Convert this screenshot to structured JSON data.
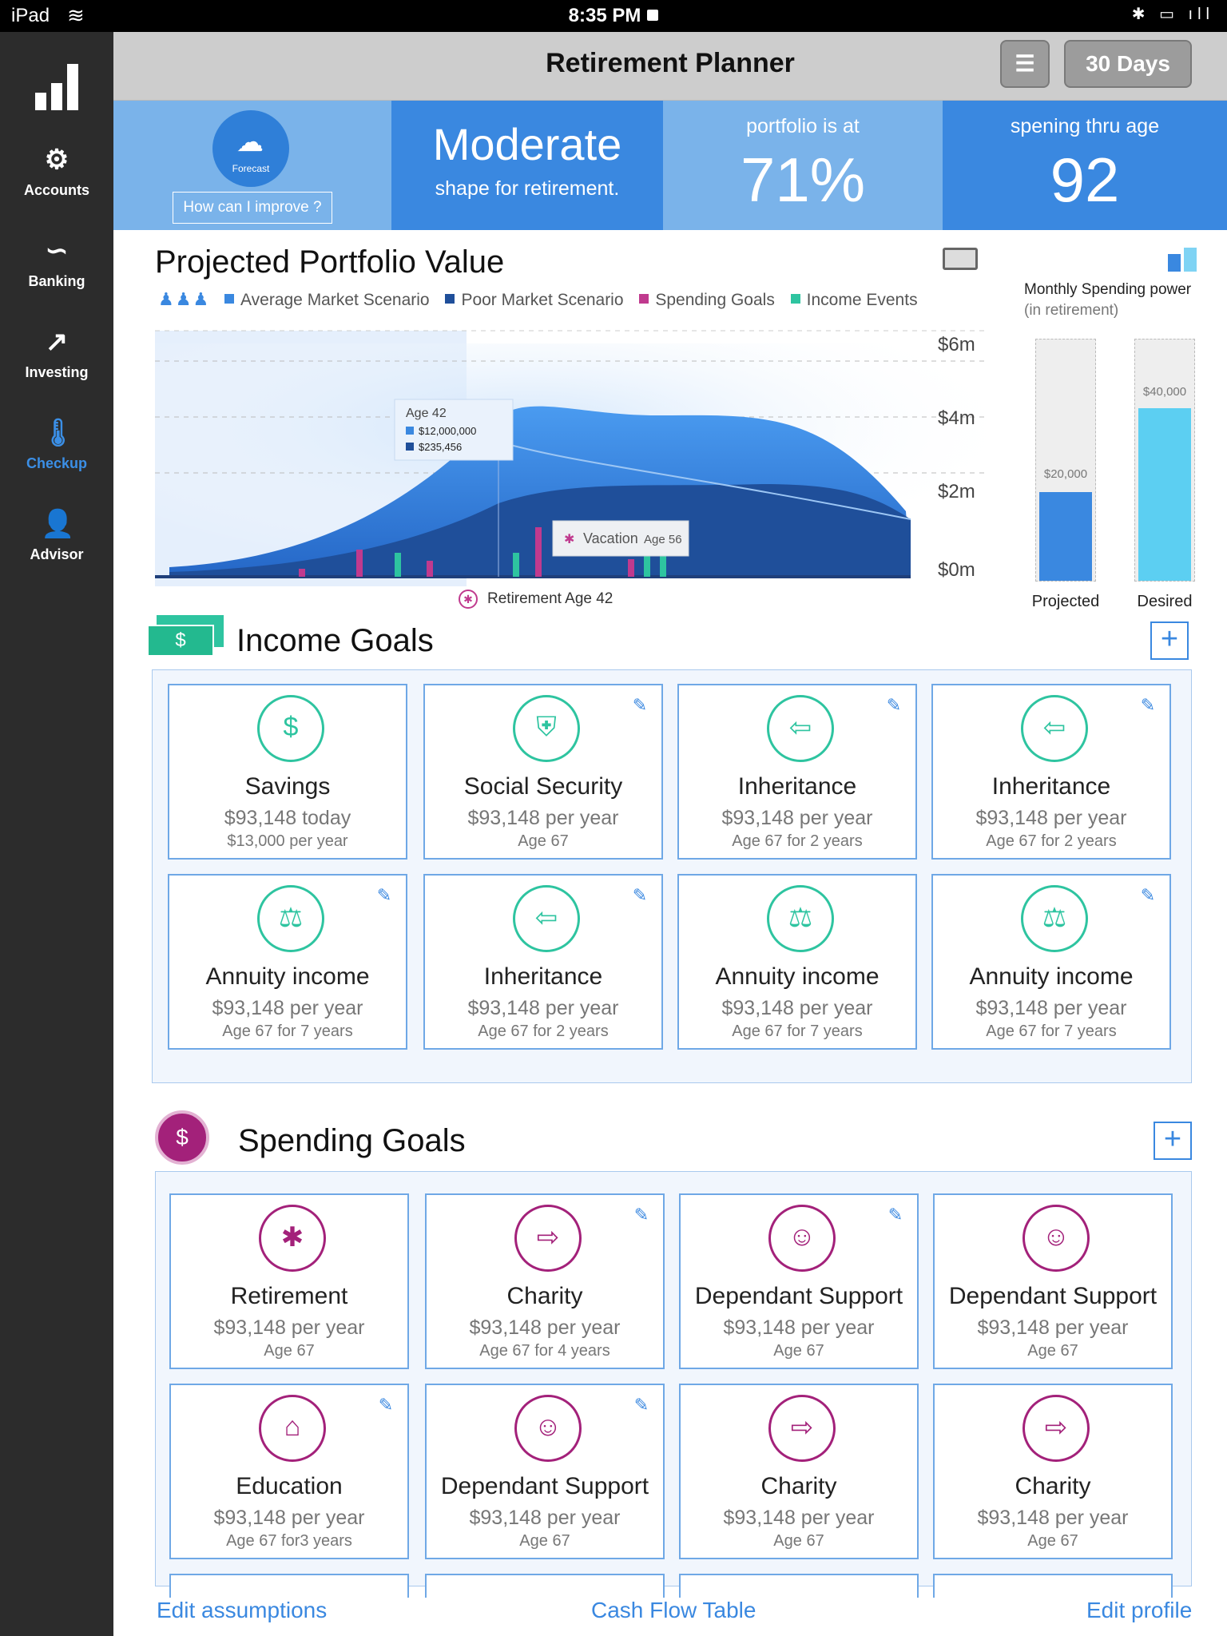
{
  "status_bar": {
    "device": "iPad",
    "time": "8:35 PM"
  },
  "colors": {
    "sidebar": "#2c2c2c",
    "accent_blue": "#3a88e0",
    "light_blue": "#7ab3ea",
    "income_green": "#2ec4a0",
    "spending_magenta": "#a3217a"
  },
  "sidebar": {
    "items": [
      {
        "label": "Accounts",
        "icon": "dollar-gear-icon"
      },
      {
        "label": "Banking",
        "icon": "link-icon"
      },
      {
        "label": "Investing",
        "icon": "trend-up-icon"
      },
      {
        "label": "Checkup",
        "icon": "thermometer-icon",
        "active": true
      },
      {
        "label": "Advisor",
        "icon": "person-icon"
      }
    ]
  },
  "header": {
    "title": "Retirement Planner",
    "range_button": "30 Days"
  },
  "summary": {
    "forecast_label": "Forecast",
    "improve_button": "How can I improve ?",
    "shape_word": "Moderate",
    "shape_sub": "shape for retirement.",
    "portfolio_label": "portfolio is at",
    "portfolio_value": "71%",
    "spending_label": "spening thru age",
    "spending_age": "92"
  },
  "chart": {
    "title": "Projected Portfolio Value",
    "legend": [
      {
        "label": "Average Market Scenario",
        "color": "#3a88e0"
      },
      {
        "label": "Poor Market Scenario",
        "color": "#1f4f9a"
      },
      {
        "label": "Spending Goals",
        "color": "#c03a8e"
      },
      {
        "label": "Income Events",
        "color": "#2ec4a0"
      }
    ],
    "y_ticks": [
      "$6m",
      "$4m",
      "$2m",
      "$0m"
    ],
    "tooltip_age": "Age 42",
    "tooltip_avg": "$12,000,000",
    "tooltip_poor": "$235,456",
    "event_label": "Vacation",
    "event_age": "Age 56",
    "retirement_marker": "Retirement Age 42"
  },
  "monthly_spending": {
    "title": "Monthly Spending power",
    "subtitle": "(in retirement)",
    "projected": {
      "label": "Projected",
      "value_label": "$20,000",
      "fraction": 0.37
    },
    "desired": {
      "label": "Desired",
      "value_label": "$40,000",
      "fraction": 0.72
    }
  },
  "income": {
    "title": "Income Goals",
    "cards": [
      {
        "title": "Savings",
        "line1": "$93,148 today",
        "line2": "$13,000 per year",
        "icon": "savings-icon"
      },
      {
        "title": "Social Security",
        "line1": "$93,148 per year",
        "line2": "Age  67",
        "icon": "shield-icon"
      },
      {
        "title": "Inheritance",
        "line1": "$93,148 per year",
        "line2": "Age  67       for 2 years",
        "icon": "gift-icon"
      },
      {
        "title": "Inheritance",
        "line1": "$93,148 per year",
        "line2": "Age  67       for 2 years",
        "icon": "gift-icon"
      },
      {
        "title": "Annuity income",
        "line1": "$93,148 per year",
        "line2": "Age  67   for 7 years",
        "icon": "scales-icon"
      },
      {
        "title": "Inheritance",
        "line1": "$93,148 per year",
        "line2": "Age  67   for 2 years",
        "icon": "gift-icon"
      },
      {
        "title": "Annuity income",
        "line1": "$93,148 per year",
        "line2": "Age  67       for 7 years",
        "icon": "scales-icon"
      },
      {
        "title": "Annuity income",
        "line1": "$93,148 per year",
        "line2": "Age  67       for 7 years",
        "icon": "scales-icon"
      }
    ]
  },
  "spending": {
    "title": "Spending Goals",
    "cards": [
      {
        "title": "Retirement",
        "line1": "$93,148 per year",
        "line2": "Age  67",
        "icon": "palm-tree-icon"
      },
      {
        "title": "Charity",
        "line1": "$93,148 per year",
        "line2": "Age  67       for 4 years",
        "icon": "gift-out-icon"
      },
      {
        "title": "Dependant Support",
        "line1": "$93,148 per year",
        "line2": "Age  67",
        "icon": "family-icon"
      },
      {
        "title": "Dependant Support",
        "line1": "$93,148 per year",
        "line2": "Age  67",
        "icon": "family-icon"
      },
      {
        "title": "Education",
        "line1": "$93,148 per year",
        "line2": "Age  67  for3 years",
        "icon": "graduation-cap-icon"
      },
      {
        "title": "Dependant Support",
        "line1": "$93,148 per year",
        "line2": "Age  67",
        "icon": "family-icon"
      },
      {
        "title": "Charity",
        "line1": "$93,148 per year",
        "line2": "Age  67",
        "icon": "gift-out-icon"
      },
      {
        "title": "Charity",
        "line1": "$93,148 per year",
        "line2": "Age  67",
        "icon": "gift-out-icon"
      }
    ]
  },
  "footer": {
    "edit_assumptions": "Edit assumptions",
    "cash_flow": "Cash Flow Table",
    "edit_profile": "Edit profile"
  }
}
